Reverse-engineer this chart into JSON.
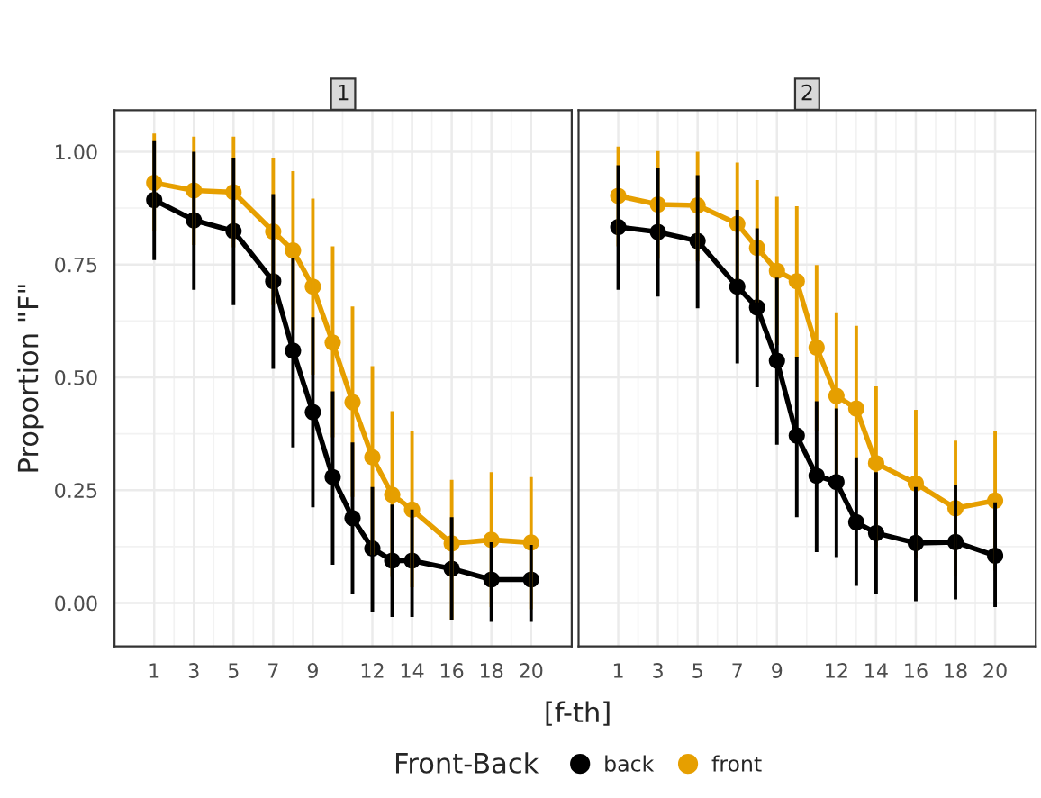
{
  "chart_data": [
    {
      "type": "line",
      "title": "1",
      "xlabel": "[f-th]",
      "ylabel": "Proportion \"F\"",
      "legend_title": "Front-Back",
      "legend": "bottom",
      "marker": "circle",
      "line_style": "solid",
      "grid": true,
      "x": [
        1,
        3,
        5,
        7,
        8,
        9,
        10,
        11,
        12,
        13,
        14,
        16,
        18,
        20
      ],
      "xlim": [
        -1.0,
        22.05
      ],
      "xticks": [
        1,
        3,
        5,
        7,
        9,
        12,
        14,
        16,
        18,
        20
      ],
      "ylim": [
        -0.096,
        1.092
      ],
      "yticks": [
        {
          "value": 0,
          "label": "0.00"
        },
        {
          "value": 0.25,
          "label": "0.25"
        },
        {
          "value": 0.5,
          "label": "0.50"
        },
        {
          "value": 0.75,
          "label": "0.75"
        },
        {
          "value": 1,
          "label": "1.00"
        }
      ],
      "series": [
        {
          "name": "back",
          "color": "#000000",
          "values": [
            0.893,
            0.848,
            0.824,
            0.713,
            0.559,
            0.423,
            0.279,
            0.188,
            0.121,
            0.094,
            0.094,
            0.076,
            0.052,
            0.052
          ],
          "errors": [
            [
              0.76,
              1.025
            ],
            [
              0.694,
              1.0
            ],
            [
              0.66,
              0.987
            ],
            [
              0.519,
              0.906
            ],
            [
              0.345,
              0.765
            ],
            [
              0.212,
              0.633
            ],
            [
              0.085,
              0.469
            ],
            [
              0.021,
              0.356
            ],
            [
              -0.02,
              0.257
            ],
            [
              -0.031,
              0.218
            ],
            [
              -0.031,
              0.207
            ],
            [
              -0.037,
              0.19
            ],
            [
              -0.042,
              0.135
            ],
            [
              -0.042,
              0.129
            ]
          ]
        },
        {
          "name": "front",
          "color": "#e69f00",
          "values": [
            0.931,
            0.914,
            0.91,
            0.823,
            0.781,
            0.701,
            0.577,
            0.445,
            0.323,
            0.24,
            0.207,
            0.132,
            0.14,
            0.134
          ],
          "errors": [
            [
              0.823,
              1.04
            ],
            [
              0.793,
              1.033
            ],
            [
              0.788,
              1.033
            ],
            [
              0.66,
              0.987
            ],
            [
              0.605,
              0.957
            ],
            [
              0.506,
              0.896
            ],
            [
              0.367,
              0.79
            ],
            [
              0.235,
              0.657
            ],
            [
              0.107,
              0.525
            ],
            [
              0.058,
              0.425
            ],
            [
              0.035,
              0.381
            ],
            [
              -0.037,
              0.273
            ],
            [
              -0.009,
              0.29
            ],
            [
              -0.014,
              0.279
            ]
          ]
        }
      ]
    },
    {
      "type": "line",
      "title": "2",
      "marker": "circle",
      "line_style": "solid",
      "grid": true,
      "tick_labels": "x",
      "x": [
        1,
        3,
        5,
        7,
        8,
        9,
        10,
        11,
        12,
        13,
        14,
        16,
        18,
        20
      ],
      "xlim": [
        -1.0,
        22.05
      ],
      "xticks": [
        1,
        3,
        5,
        7,
        9,
        12,
        14,
        16,
        18,
        20
      ],
      "ylim": [
        -0.096,
        1.092
      ],
      "yticks": [
        {
          "value": 0,
          "label": null
        },
        {
          "value": 0.25,
          "label": null
        },
        {
          "value": 0.5,
          "label": null
        },
        {
          "value": 0.75,
          "label": null
        },
        {
          "value": 1,
          "label": null
        }
      ],
      "series": [
        {
          "color": "#000000",
          "values": [
            0.833,
            0.822,
            0.802,
            0.701,
            0.655,
            0.537,
            0.371,
            0.282,
            0.268,
            0.179,
            0.155,
            0.133,
            0.135,
            0.105
          ],
          "errors": [
            [
              0.694,
              0.97
            ],
            [
              0.679,
              0.965
            ],
            [
              0.653,
              0.948
            ],
            [
              0.531,
              0.871
            ],
            [
              0.478,
              0.83
            ],
            [
              0.351,
              0.721
            ],
            [
              0.19,
              0.546
            ],
            [
              0.113,
              0.447
            ],
            [
              0.102,
              0.431
            ],
            [
              0.038,
              0.323
            ],
            [
              0.019,
              0.29
            ],
            [
              0.004,
              0.257
            ],
            [
              0.008,
              0.262
            ],
            [
              -0.009,
              0.223
            ]
          ]
        },
        {
          "color": "#e69f00",
          "values": [
            0.902,
            0.883,
            0.881,
            0.84,
            0.787,
            0.736,
            0.713,
            0.566,
            0.459,
            0.431,
            0.31,
            0.265,
            0.21,
            0.227
          ],
          "errors": [
            [
              0.79,
              1.011
            ],
            [
              0.763,
              1.001
            ],
            [
              0.757,
              1.0
            ],
            [
              0.716,
              0.976
            ],
            [
              0.666,
              0.937
            ],
            [
              0.572,
              0.9
            ],
            [
              0.544,
              0.879
            ],
            [
              0.382,
              0.749
            ],
            [
              0.284,
              0.644
            ],
            [
              0.246,
              0.614
            ],
            [
              0.124,
              0.48
            ],
            [
              0.1,
              0.428
            ],
            [
              0.06,
              0.36
            ],
            [
              0.072,
              0.382
            ]
          ]
        }
      ]
    }
  ]
}
